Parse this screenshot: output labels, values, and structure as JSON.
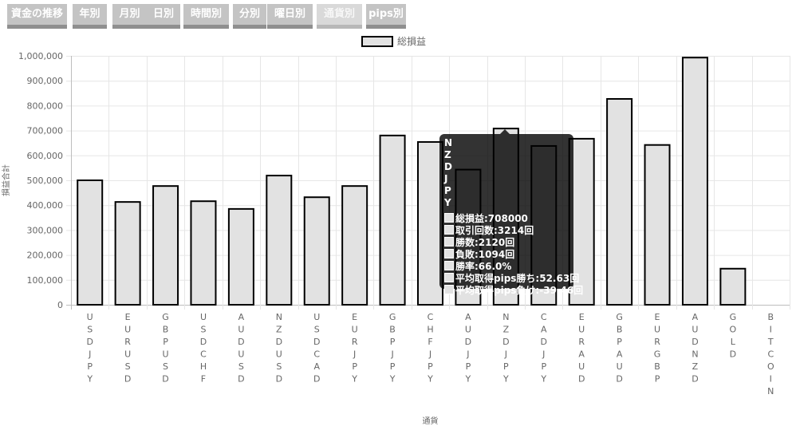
{
  "tabs": [
    {
      "label": "資金の推移",
      "active": false
    },
    {
      "label": "年別",
      "active": false
    },
    {
      "label": "月別",
      "active": false
    },
    {
      "label": "日別",
      "active": false
    },
    {
      "label": "時間別",
      "active": false
    },
    {
      "label": "分別",
      "active": false
    },
    {
      "label": "曜日別",
      "active": false
    },
    {
      "label": "通貨別",
      "active": true
    },
    {
      "label": "pips別",
      "active": false
    }
  ],
  "chart_data": {
    "type": "bar",
    "categories": [
      "USDJPY",
      "EURUSD",
      "GBPUSD",
      "USDCHF",
      "AUDUSD",
      "NZDUSD",
      "USDCAD",
      "EURJPY",
      "GBPJPY",
      "CHFJPY",
      "AUDJPY",
      "NZDJPY",
      "CADJPY",
      "EURAUD",
      "GBPAUD",
      "EURGBP",
      "AUDNZD",
      "GOLD",
      "BITCOIN"
    ],
    "series": [
      {
        "name": "総損益",
        "values": [
          500000,
          413000,
          477000,
          416000,
          385000,
          519000,
          432000,
          477000,
          680000,
          654000,
          543000,
          708000,
          638000,
          667000,
          827000,
          642000,
          993000,
          145000,
          0
        ],
        "color": "#e2e2e2",
        "border": "#000000"
      }
    ],
    "xlabel": "通貨",
    "ylabel": "損益合計",
    "ylim": [
      0,
      1000000
    ],
    "yticks": [
      0,
      100000,
      200000,
      300000,
      400000,
      500000,
      600000,
      700000,
      800000,
      900000,
      1000000
    ],
    "ytick_labels": [
      "0",
      "100,000",
      "200,000",
      "300,000",
      "400,000",
      "500,000",
      "600,000",
      "700,000",
      "800,000",
      "900,000",
      "1,000,000"
    ],
    "grid": true,
    "legend": "top"
  },
  "tooltip": {
    "title": "NZDJPY",
    "lines": [
      "総損益:708000",
      "取引回数:3214回",
      "勝数:2120回",
      "負敗:1094回",
      "勝率:66.0%",
      "平均取得pips勝ち:52.63回",
      "平均取得pips負け:-39.46回"
    ]
  }
}
